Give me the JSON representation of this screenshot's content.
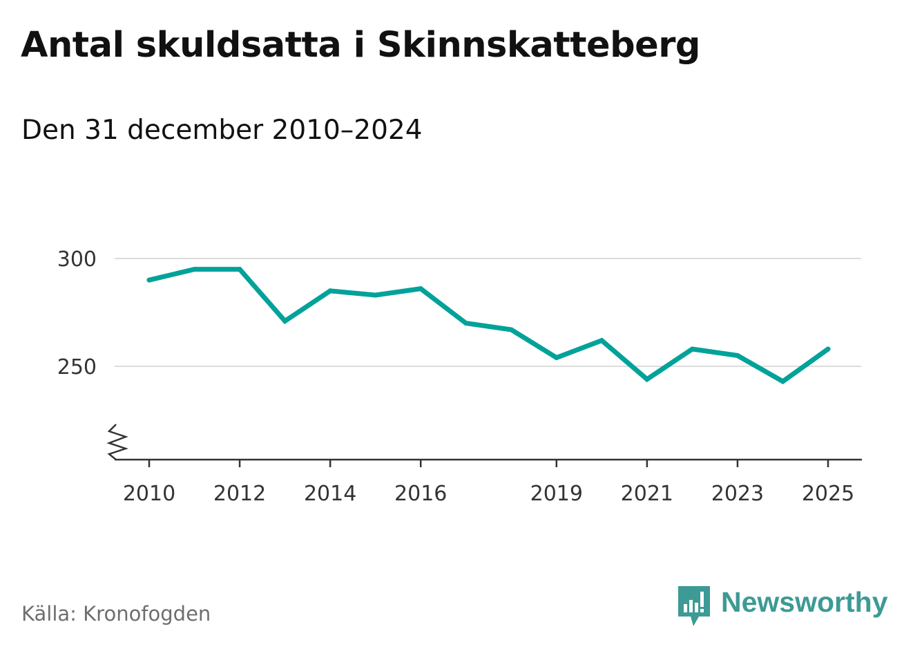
{
  "header": {
    "title": "Antal skuldsatta i Skinnskatteberg",
    "subtitle": "Den 31 december 2010–2024"
  },
  "footer": {
    "source": "Källa: Kronofogden",
    "brand": "Newsworthy"
  },
  "colors": {
    "line": "#00a299",
    "grid": "#dcdcdc",
    "axis": "#333333",
    "brand": "#3d9a95",
    "source_text": "#6e6e6e"
  },
  "icons": {
    "logo": "newsworthy-bar-chart-speech-bubble-icon",
    "axis_break": "zigzag-axis-break-icon"
  },
  "chart_data": {
    "type": "line",
    "title": "Antal skuldsatta i Skinnskatteberg",
    "subtitle": "Den 31 december 2010–2024",
    "xlabel": "",
    "ylabel": "",
    "x": [
      2010,
      2011,
      2012,
      2013,
      2014,
      2015,
      2016,
      2017,
      2018,
      2019,
      2020,
      2021,
      2022,
      2023,
      2024,
      2025
    ],
    "series": [
      {
        "name": "Antal skuldsatta",
        "values": [
          290,
          295,
          295,
          271,
          285,
          283,
          286,
          270,
          267,
          254,
          262,
          244,
          258,
          255,
          243,
          258
        ]
      }
    ],
    "xticks": [
      "2010",
      "2012",
      "2014",
      "2016",
      "2019",
      "2021",
      "2023",
      "2025"
    ],
    "yticks": [
      "250",
      "300"
    ],
    "ylim": [
      206,
      305
    ],
    "grid": true,
    "axis_break": true,
    "legend": "none"
  }
}
